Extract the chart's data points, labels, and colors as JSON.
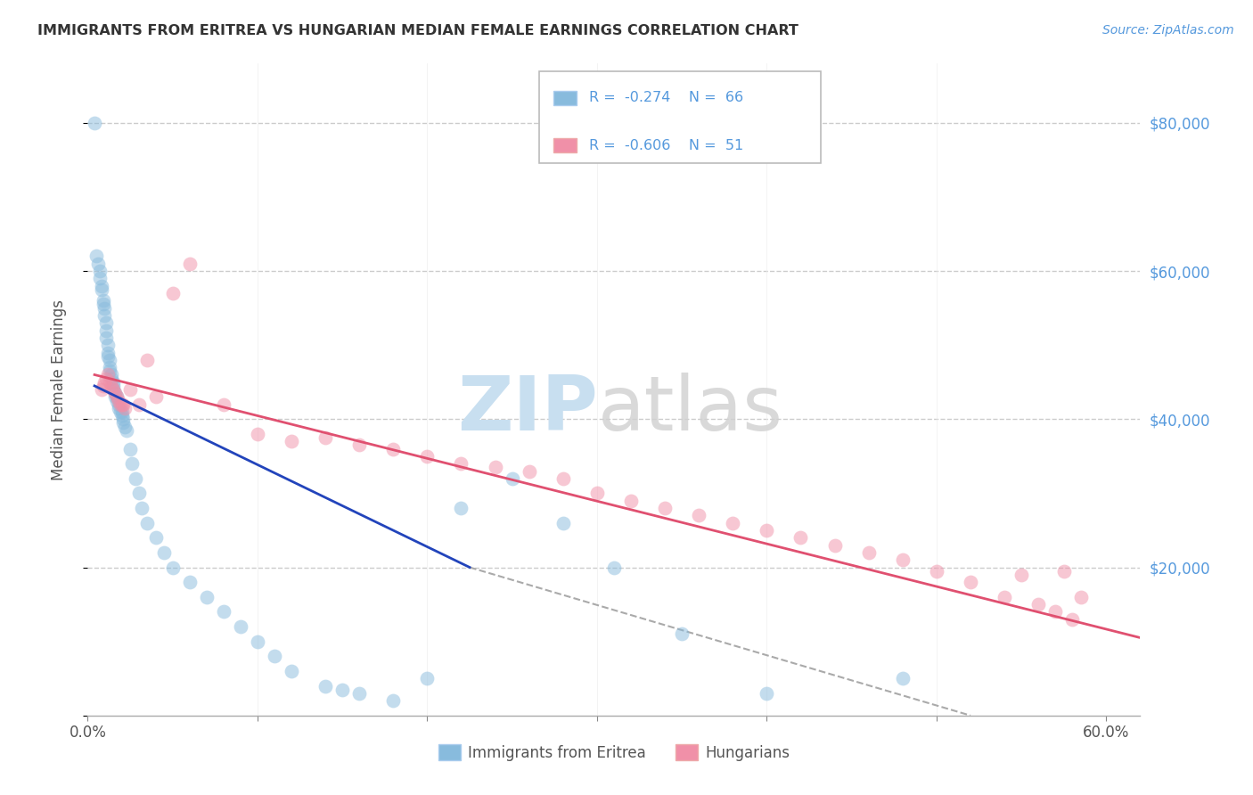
{
  "title": "IMMIGRANTS FROM ERITREA VS HUNGARIAN MEDIAN FEMALE EARNINGS CORRELATION CHART",
  "source": "Source: ZipAtlas.com",
  "ylabel": "Median Female Earnings",
  "xmin": 0.0,
  "xmax": 0.62,
  "ymin": 0,
  "ymax": 88000,
  "yticks": [
    0,
    20000,
    40000,
    60000,
    80000
  ],
  "xticks": [
    0.0,
    0.1,
    0.2,
    0.3,
    0.4,
    0.5,
    0.6
  ],
  "blue_color": "#88bbdd",
  "pink_color": "#f090a8",
  "blue_line_color": "#2244bb",
  "pink_line_color": "#e05070",
  "background_color": "#ffffff",
  "grid_color": "#cccccc",
  "legend_r1": "-0.274",
  "legend_n1": "66",
  "legend_r2": "-0.606",
  "legend_n2": "51",
  "blue_label": "Immigrants from Eritrea",
  "pink_label": "Hungarians",
  "blue_scatter_x": [
    0.004,
    0.005,
    0.006,
    0.007,
    0.007,
    0.008,
    0.008,
    0.009,
    0.009,
    0.01,
    0.01,
    0.011,
    0.011,
    0.011,
    0.012,
    0.012,
    0.012,
    0.013,
    0.013,
    0.013,
    0.014,
    0.014,
    0.015,
    0.015,
    0.015,
    0.016,
    0.016,
    0.017,
    0.017,
    0.018,
    0.018,
    0.019,
    0.02,
    0.02,
    0.021,
    0.021,
    0.022,
    0.023,
    0.025,
    0.026,
    0.028,
    0.03,
    0.032,
    0.035,
    0.04,
    0.045,
    0.05,
    0.06,
    0.07,
    0.08,
    0.09,
    0.1,
    0.11,
    0.12,
    0.14,
    0.15,
    0.16,
    0.18,
    0.2,
    0.22,
    0.25,
    0.28,
    0.31,
    0.35,
    0.4,
    0.48
  ],
  "blue_scatter_y": [
    80000,
    62000,
    61000,
    60000,
    59000,
    58000,
    57500,
    56000,
    55500,
    55000,
    54000,
    53000,
    52000,
    51000,
    50000,
    49000,
    48500,
    48000,
    47000,
    46500,
    46000,
    45500,
    45000,
    44500,
    44000,
    43500,
    43000,
    43000,
    42500,
    42000,
    41500,
    41000,
    41000,
    40500,
    40000,
    39500,
    39000,
    38500,
    36000,
    34000,
    32000,
    30000,
    28000,
    26000,
    24000,
    22000,
    20000,
    18000,
    16000,
    14000,
    12000,
    10000,
    8000,
    6000,
    4000,
    3500,
    3000,
    2000,
    5000,
    28000,
    32000,
    26000,
    20000,
    11000,
    3000,
    5000
  ],
  "pink_scatter_x": [
    0.008,
    0.009,
    0.01,
    0.011,
    0.012,
    0.013,
    0.014,
    0.015,
    0.016,
    0.017,
    0.018,
    0.019,
    0.02,
    0.021,
    0.022,
    0.025,
    0.03,
    0.035,
    0.04,
    0.05,
    0.06,
    0.08,
    0.1,
    0.12,
    0.14,
    0.16,
    0.18,
    0.2,
    0.22,
    0.24,
    0.26,
    0.28,
    0.3,
    0.32,
    0.34,
    0.36,
    0.38,
    0.4,
    0.42,
    0.44,
    0.46,
    0.48,
    0.5,
    0.52,
    0.54,
    0.55,
    0.56,
    0.57,
    0.575,
    0.58,
    0.585
  ],
  "pink_scatter_y": [
    44000,
    44500,
    45000,
    45500,
    46000,
    45000,
    44500,
    44000,
    43500,
    43000,
    42500,
    42000,
    42000,
    42000,
    41500,
    44000,
    42000,
    48000,
    43000,
    57000,
    61000,
    42000,
    38000,
    37000,
    37500,
    36500,
    36000,
    35000,
    34000,
    33500,
    33000,
    32000,
    30000,
    29000,
    28000,
    27000,
    26000,
    25000,
    24000,
    23000,
    22000,
    21000,
    19500,
    18000,
    16000,
    19000,
    15000,
    14000,
    19500,
    13000,
    16000
  ],
  "blue_trend_x": [
    0.004,
    0.225
  ],
  "blue_trend_y": [
    44500,
    20000
  ],
  "pink_trend_x": [
    0.004,
    0.62
  ],
  "pink_trend_y": [
    46000,
    10500
  ],
  "dash_trend_x": [
    0.225,
    0.52
  ],
  "dash_trend_y": [
    20000,
    0
  ]
}
